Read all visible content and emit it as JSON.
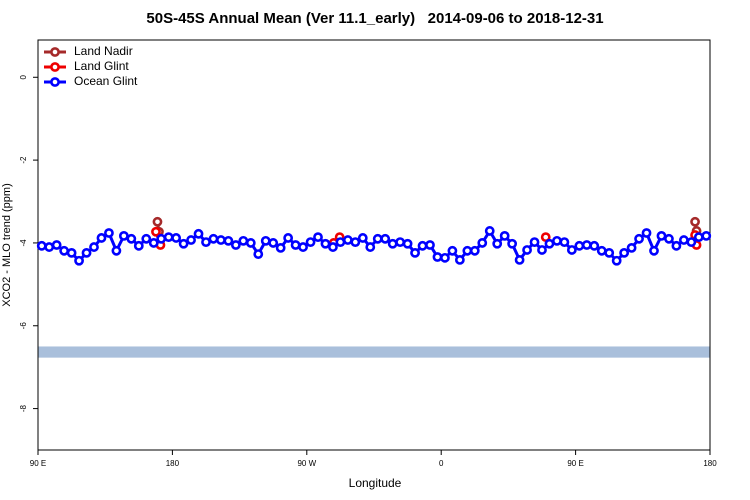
{
  "chart_data": {
    "type": "line",
    "title": "50S-45S Annual Mean (Ver 11.1_early)   2014-09-06 to 2018-12-31",
    "x_label": "Longitude",
    "y_label": "XCO2 - MLO trend (ppm)",
    "xlim": [
      90,
      540
    ],
    "ylim": [
      -9,
      0.9
    ],
    "xticks": [
      {
        "value": 90,
        "label": "90 E"
      },
      180,
      {
        "value": 270,
        "label": "90 W"
      },
      {
        "value": 360,
        "label": "0"
      },
      {
        "value": 450,
        "label": "90 E"
      },
      {
        "value": 540,
        "label": "180"
      }
    ],
    "yticks": [
      0,
      -2,
      -4,
      -6,
      -8
    ],
    "legend_position": "top-left",
    "band": {
      "ylim": [
        -6.77,
        -6.5
      ],
      "color": "#a9bfdb"
    },
    "series": [
      {
        "name": "Land Nadir",
        "color": "#a52a2a",
        "x": [
          170,
          171,
          200,
          530,
          531
        ],
        "values": [
          -3.49,
          -3.73,
          null,
          -3.49,
          -3.71
        ]
      },
      {
        "name": "Land Glint",
        "color": "#ee0000",
        "x": [
          169,
          172,
          200,
          288,
          292,
          400,
          430,
          480,
          530,
          531
        ],
        "values": [
          -3.73,
          -4.05,
          null,
          -4.0,
          -3.86,
          null,
          -3.86,
          null,
          -3.81,
          -4.05
        ]
      },
      {
        "name": "Ocean Glint",
        "color": "#0000ff",
        "x": [
          92.5,
          97.5,
          102.5,
          107.5,
          112.5,
          117.5,
          122.5,
          127.5,
          132.5,
          137.5,
          142.5,
          147.5,
          152.5,
          157.5,
          162.5,
          167.5,
          172.5,
          177.5,
          182.5,
          187.5,
          192.5,
          197.5,
          202.5,
          207.5,
          212.5,
          217.5,
          222.5,
          227.5,
          232.5,
          237.5,
          242.5,
          247.5,
          252.5,
          257.5,
          262.5,
          267.5,
          272.5,
          277.5,
          282.5,
          287.5,
          292.5,
          297.5,
          302.5,
          307.5,
          312.5,
          317.5,
          322.5,
          327.5,
          332.5,
          337.5,
          342.5,
          347.5,
          352.5,
          357.5,
          362.5,
          367.5,
          372.5,
          377.5,
          382.5,
          387.5,
          392.5,
          397.5,
          402.5,
          407.5,
          412.5,
          417.5,
          422.5,
          427.5,
          432.5,
          437.5,
          442.5,
          447.5,
          452.5,
          457.5,
          462.5,
          467.5,
          472.5,
          477.5,
          482.5,
          487.5,
          492.5,
          497.5,
          502.5,
          507.5,
          512.5,
          517.5,
          522.5,
          527.5,
          532.5,
          537.5
        ],
        "values": [
          -4.07,
          -4.1,
          -4.05,
          -4.19,
          -4.24,
          -4.43,
          -4.24,
          -4.1,
          -3.88,
          -3.76,
          -4.19,
          -3.83,
          -3.9,
          -4.07,
          -3.9,
          -4.0,
          -3.9,
          -3.86,
          -3.88,
          -4.02,
          -3.93,
          -3.78,
          -3.98,
          -3.9,
          -3.93,
          -3.95,
          -4.05,
          -3.95,
          -4.0,
          -4.27,
          -3.95,
          -4.0,
          -4.12,
          -3.88,
          -4.05,
          -4.1,
          -3.98,
          -3.86,
          -4.02,
          -4.1,
          -3.98,
          -3.93,
          -3.98,
          -3.88,
          -4.1,
          -3.9,
          -3.9,
          -4.02,
          -3.98,
          -4.02,
          -4.24,
          -4.07,
          -4.05,
          -4.34,
          -4.36,
          -4.19,
          -4.41,
          -4.19,
          -4.19,
          -4.0,
          -3.71,
          -4.02,
          -3.83,
          -4.02,
          -4.41,
          -4.17,
          -3.98,
          -4.17,
          -4.02,
          -3.95,
          -3.98,
          -4.17,
          -4.07,
          -4.05,
          -4.07,
          -4.19,
          -4.24,
          -4.43,
          -4.24,
          -4.12,
          -3.9,
          -3.76,
          -4.19,
          -3.83,
          -3.9,
          -4.07,
          -3.93,
          -3.98,
          -3.86,
          -3.83
        ]
      }
    ]
  }
}
